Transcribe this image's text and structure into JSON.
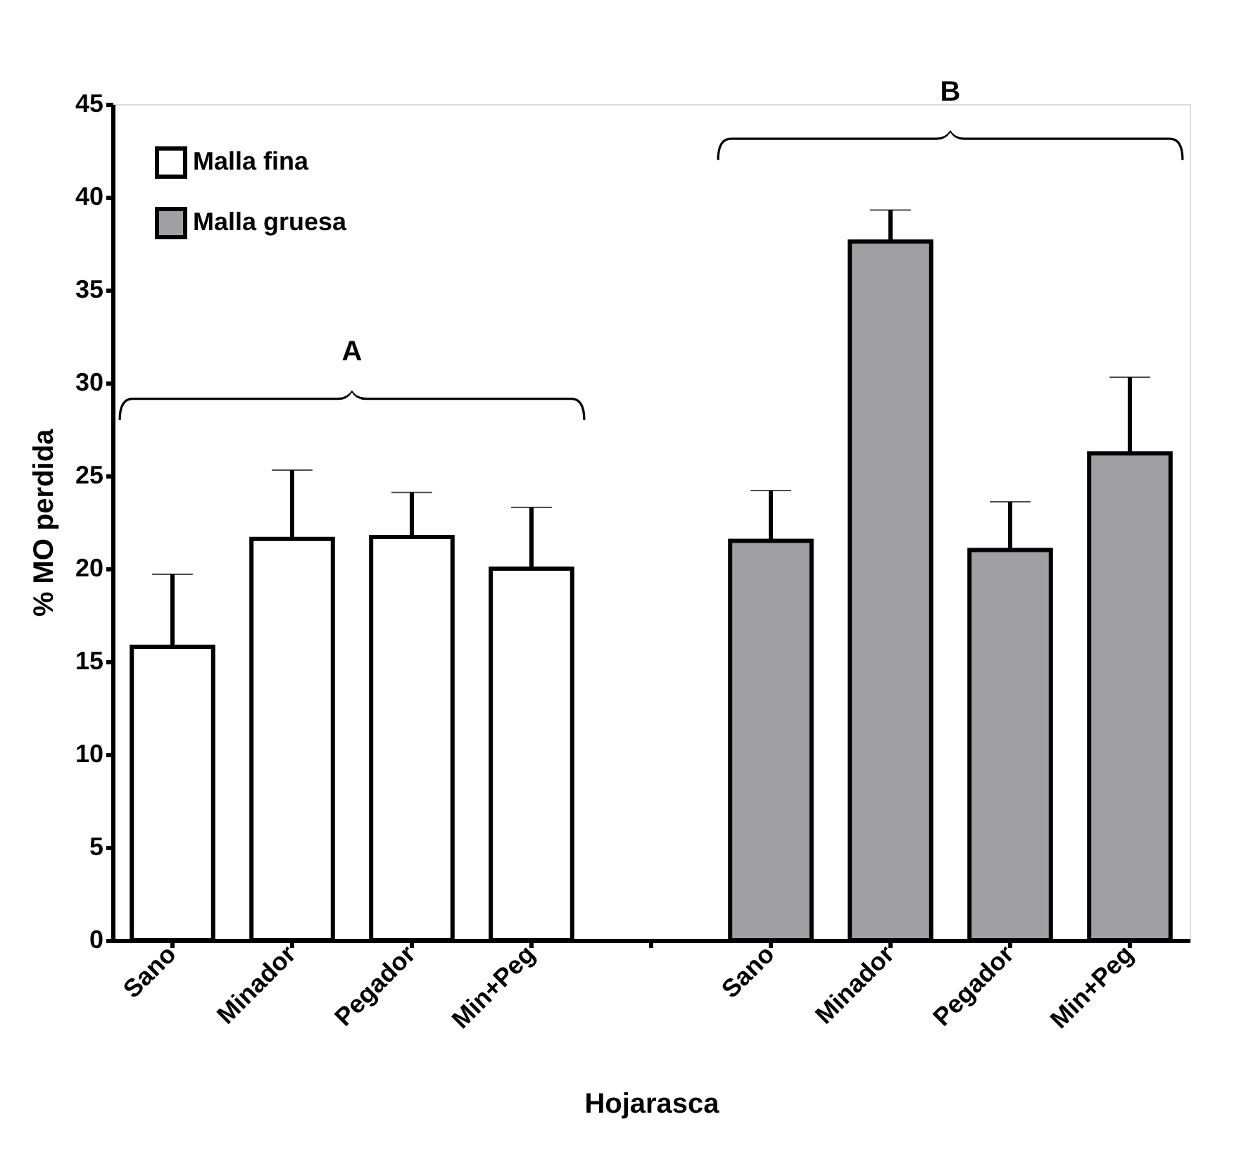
{
  "chart_data": {
    "type": "bar",
    "xlabel": "Hojarasca",
    "ylabel": "% MO perdida",
    "categories": [
      "Sano",
      "Minador",
      "Pegador",
      "Min+Peg",
      null,
      "Sano",
      "Minador",
      "Pegador",
      "Min+Peg"
    ],
    "series": [
      {
        "name": "Malla fina",
        "color": "#ffffff",
        "values": [
          15.8,
          21.6,
          21.7,
          20.0,
          null,
          null,
          null,
          null,
          null
        ],
        "errors": [
          [
            15.8,
            19.7
          ],
          [
            21.6,
            25.3
          ],
          [
            21.7,
            24.1
          ],
          [
            20.0,
            23.3
          ],
          null,
          null,
          null,
          null,
          null
        ]
      },
      {
        "name": "Malla gruesa",
        "color": "#a0a0a4",
        "values": [
          null,
          null,
          null,
          null,
          null,
          21.5,
          37.6,
          21.0,
          26.2
        ],
        "errors": [
          null,
          null,
          null,
          null,
          null,
          [
            21.5,
            24.2
          ],
          [
            37.6,
            39.3
          ],
          [
            21.0,
            23.6
          ],
          [
            26.2,
            30.3
          ]
        ]
      }
    ],
    "ylim": [
      0,
      45
    ],
    "yticks": [
      0,
      5,
      10,
      15,
      20,
      25,
      30,
      35,
      40,
      45
    ],
    "annotations": [
      "A",
      "B"
    ],
    "legend": "top left",
    "grid": false
  }
}
